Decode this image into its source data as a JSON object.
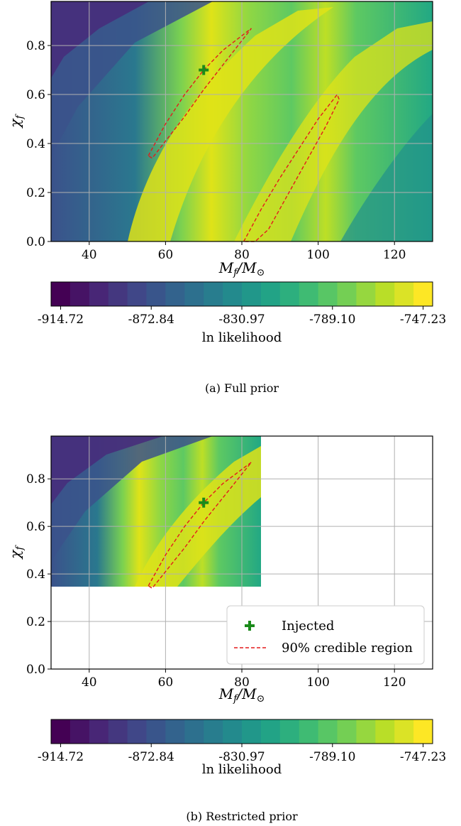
{
  "chart_data": [
    {
      "type": "heatmap",
      "caption": "(a) Full prior",
      "xlabel": "M_f/M_⊙",
      "ylabel": "χ_f",
      "xlim": [
        30,
        130
      ],
      "ylim": [
        0.0,
        0.98
      ],
      "xticks": [
        40,
        60,
        80,
        100,
        120
      ],
      "yticks": [
        0.0,
        0.2,
        0.4,
        0.6,
        0.8
      ],
      "xtick_labels": [
        "40",
        "60",
        "80",
        "100",
        "120"
      ],
      "ytick_labels": [
        "0.0",
        "0.2",
        "0.4",
        "0.6",
        "0.8"
      ],
      "grid": true,
      "data_region": {
        "x": [
          30,
          130
        ],
        "y": [
          0.0,
          0.98
        ]
      },
      "injected": {
        "x": 70,
        "y": 0.7
      },
      "credible_regions": [
        {
          "x": [
            55.5,
            60,
            65,
            70,
            75,
            80,
            82.5,
            80,
            75,
            70,
            65,
            60,
            56.5,
            55.5
          ],
          "y": [
            0.35,
            0.48,
            0.6,
            0.7,
            0.78,
            0.84,
            0.87,
            0.82,
            0.72,
            0.62,
            0.51,
            0.41,
            0.34,
            0.35
          ]
        },
        {
          "x": [
            80.5,
            85,
            90,
            95,
            100,
            105,
            105.5,
            102,
            97,
            92,
            87,
            83.5,
            80.5
          ],
          "y": [
            0.0,
            0.13,
            0.26,
            0.38,
            0.5,
            0.6,
            0.58,
            0.47,
            0.33,
            0.19,
            0.05,
            0.0,
            0.0
          ]
        }
      ],
      "colorbar": {
        "label": "ln likelihood",
        "min": -914.72,
        "max": -747.23,
        "ticks": [
          "-914.72",
          "-872.84",
          "-830.97",
          "-789.10",
          "-747.23"
        ]
      },
      "legend": null
    },
    {
      "type": "heatmap",
      "caption": "(b) Restricted prior",
      "xlabel": "M_f/M_⊙",
      "ylabel": "χ_f",
      "xlim": [
        30,
        130
      ],
      "ylim": [
        0.0,
        0.98
      ],
      "xticks": [
        40,
        60,
        80,
        100,
        120
      ],
      "yticks": [
        0.0,
        0.2,
        0.4,
        0.6,
        0.8
      ],
      "xtick_labels": [
        "40",
        "60",
        "80",
        "100",
        "120"
      ],
      "ytick_labels": [
        "0.0",
        "0.2",
        "0.4",
        "0.6",
        "0.8"
      ],
      "grid": true,
      "data_region": {
        "x": [
          30,
          85
        ],
        "y": [
          0.35,
          0.98
        ]
      },
      "injected": {
        "x": 70,
        "y": 0.7
      },
      "credible_regions": [
        {
          "x": [
            55.5,
            60,
            65,
            70,
            75,
            80,
            82.5,
            80,
            75,
            70,
            65,
            60,
            56.5,
            55.5
          ],
          "y": [
            0.35,
            0.48,
            0.6,
            0.7,
            0.78,
            0.84,
            0.87,
            0.82,
            0.72,
            0.62,
            0.51,
            0.41,
            0.34,
            0.35
          ]
        }
      ],
      "colorbar": {
        "label": "ln likelihood",
        "min": -914.72,
        "max": -747.23,
        "ticks": [
          "-914.72",
          "-872.84",
          "-830.97",
          "-789.10",
          "-747.23"
        ]
      },
      "legend": {
        "placement": "lower-right",
        "entries": [
          "Injected",
          "90% credible region"
        ]
      }
    }
  ],
  "colors": {
    "viridis": [
      "#440154",
      "#482475",
      "#414487",
      "#355f8d",
      "#2a788e",
      "#21918c",
      "#22a884",
      "#44bf70",
      "#7ad151",
      "#bddf26",
      "#fde725"
    ],
    "injected": "#1a8a1a",
    "credible": "#e31a1c",
    "grid": "#b0b0b0"
  }
}
